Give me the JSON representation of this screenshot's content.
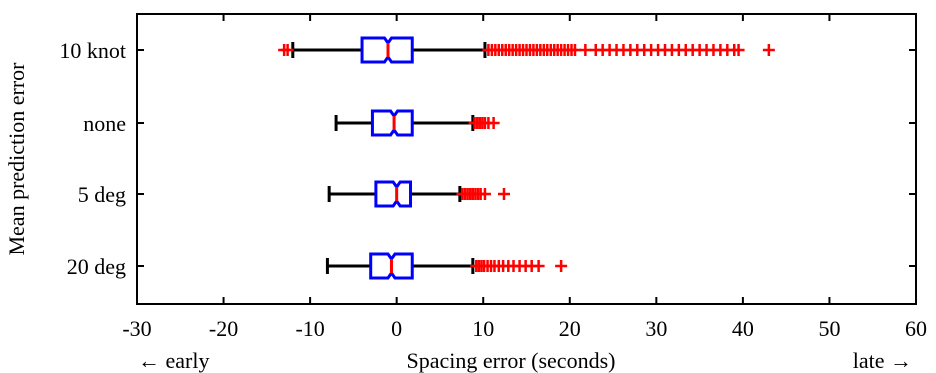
{
  "chart_data": {
    "type": "boxplot",
    "orientation": "horizontal",
    "xlabel": "Spacing error (seconds)",
    "ylabel": "Mean prediction error",
    "xlabel_left_note": "← early",
    "xlabel_right_note": "late →",
    "xlim": [
      -30,
      60
    ],
    "xticks": [
      -30,
      -20,
      -10,
      0,
      10,
      20,
      30,
      40,
      50,
      60
    ],
    "grid": false,
    "notched": true,
    "colors": {
      "box": "#0000ff",
      "median": "#ff0000",
      "whisker": "#000000",
      "outlier": "#ff0000"
    },
    "categories": [
      "10 knot",
      "none",
      "5 deg",
      "20 deg"
    ],
    "series": [
      {
        "category": "10 knot",
        "whisker_low": -12,
        "q1": -4,
        "median": -1,
        "q3": 1.8,
        "whisker_high": 10.2,
        "outliers": [
          -13,
          -12.6,
          10.6,
          11,
          11.4,
          11.8,
          12.2,
          12.6,
          13,
          13.4,
          13.8,
          14.2,
          14.6,
          15,
          15.4,
          15.8,
          16.2,
          16.6,
          17,
          17.4,
          17.8,
          18.2,
          18.6,
          19,
          19.4,
          19.8,
          20.2,
          20.6,
          21.8,
          23,
          23.8,
          24.6,
          25.4,
          26.2,
          27,
          27.8,
          28.6,
          29.4,
          30.2,
          31,
          31.8,
          32.6,
          33.4,
          34.2,
          35,
          35.8,
          36.6,
          37.4,
          38.2,
          39,
          39.5,
          43
        ]
      },
      {
        "category": "none",
        "whisker_low": -7,
        "q1": -2.8,
        "median": -0.3,
        "q3": 1.8,
        "whisker_high": 8.8,
        "outliers": [
          9,
          9.3,
          9.6,
          9.9,
          10.2,
          10.6,
          11.2
        ]
      },
      {
        "category": "5 deg",
        "whisker_low": -7.8,
        "q1": -2.4,
        "median": 0,
        "q3": 1.6,
        "whisker_high": 7.3,
        "outliers": [
          7.6,
          7.9,
          8.2,
          8.5,
          8.8,
          9.1,
          9.4,
          9.7,
          10.2,
          12.4
        ]
      },
      {
        "category": "20 deg",
        "whisker_low": -8,
        "q1": -3,
        "median": -0.6,
        "q3": 1.8,
        "whisker_high": 8.8,
        "outliers": [
          9.2,
          9.5,
          9.8,
          10.1,
          10.5,
          10.9,
          11.3,
          11.8,
          12.3,
          12.9,
          13.5,
          14.2,
          14.9,
          15.6,
          16.4,
          19
        ]
      }
    ]
  }
}
